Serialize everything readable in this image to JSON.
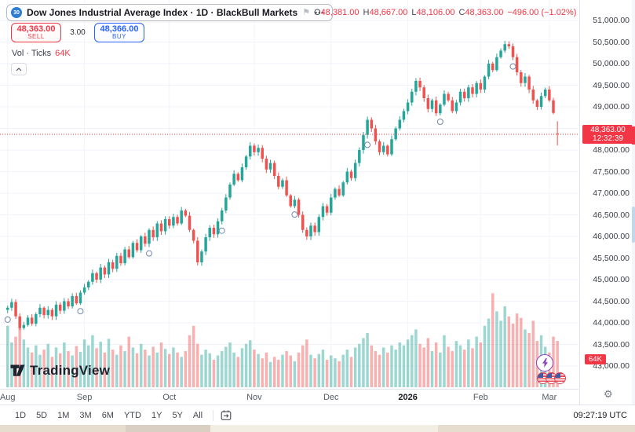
{
  "header": {
    "badge": "30",
    "title": "Dow Jones Industrial Average Index · 1D · BlackBull Markets",
    "more_label": "•••",
    "ohlc": {
      "o_label": "O",
      "o": "48,381.00",
      "h_label": "H",
      "h": "48,667.00",
      "l_label": "L",
      "l": "48,106.00",
      "c_label": "C",
      "c": "48,363.00",
      "change": "−496.00 (−1.02%)"
    }
  },
  "trade_panel": {
    "sell_price": "48,363.00",
    "sell_label": "SELL",
    "spread": "3.00",
    "buy_price": "48,366.00",
    "buy_label": "BUY",
    "vol_label": "Vol · Ticks",
    "vol_value": "64K"
  },
  "price_axis": {
    "labels": [
      "51,000.00",
      "50,500.00",
      "50,000.00",
      "49,500.00",
      "49,000.00",
      "48,500.00",
      "48,000.00",
      "47,500.00",
      "47,000.00",
      "46,500.00",
      "46,000.00",
      "45,500.00",
      "45,000.00",
      "44,500.00",
      "44,000.00",
      "43,500.00",
      "43,000.00"
    ],
    "current_price": "48,363.00",
    "countdown": "12:32:39",
    "volume_tag": "64K"
  },
  "time_axis": {
    "labels": [
      {
        "text": "Aug",
        "bar": 0
      },
      {
        "text": "Sep",
        "bar": 19
      },
      {
        "text": "Oct",
        "bar": 40
      },
      {
        "text": "Nov",
        "bar": 61
      },
      {
        "text": "Dec",
        "bar": 80
      },
      {
        "text": "2026",
        "bar": 99,
        "bold": true
      },
      {
        "text": "Feb",
        "bar": 117
      },
      {
        "text": "Mar",
        "bar": 134
      }
    ]
  },
  "toolbar": {
    "ranges": [
      "1D",
      "5D",
      "1M",
      "3M",
      "6M",
      "YTD",
      "1Y",
      "5Y",
      "All"
    ],
    "clock": "09:27:19 UTC"
  },
  "logo": {
    "text": "TradingView"
  },
  "chart_data": {
    "type": "candlestick",
    "title": "Dow Jones Industrial Average Index",
    "interval": "1D",
    "provider": "BlackBull Markets",
    "y_min": 43000,
    "y_max": 51000,
    "y_step": 500,
    "x_months": [
      "Aug",
      "Sep",
      "Oct",
      "Nov",
      "Dec",
      "2026",
      "Feb",
      "Mar"
    ],
    "current_price": 48363,
    "last_bar": {
      "open": 48381,
      "high": 48667,
      "low": 48106,
      "close": 48363
    },
    "first_open": 44300,
    "closes": [
      44350,
      44480,
      44150,
      43880,
      43950,
      44120,
      43980,
      44200,
      44350,
      44180,
      44300,
      44150,
      44420,
      44280,
      44500,
      44380,
      44620,
      44450,
      44700,
      44820,
      44950,
      45150,
      45000,
      45280,
      45120,
      45400,
      45250,
      45550,
      45380,
      45700,
      45520,
      45850,
      45680,
      46000,
      45830,
      46150,
      45980,
      46300,
      46120,
      46400,
      46250,
      46450,
      46300,
      46600,
      46480,
      46150,
      45900,
      45400,
      45650,
      45980,
      46200,
      46050,
      46350,
      46600,
      46900,
      47200,
      47450,
      47300,
      47600,
      47850,
      48100,
      47950,
      48050,
      47800,
      47550,
      47700,
      47400,
      47150,
      47300,
      46950,
      46700,
      46850,
      46500,
      46150,
      46000,
      46250,
      46100,
      46450,
      46700,
      46550,
      46900,
      47100,
      46950,
      47250,
      47500,
      47350,
      47700,
      48000,
      48350,
      48700,
      48500,
      48200,
      47950,
      48100,
      47900,
      48250,
      48500,
      48700,
      48900,
      49100,
      49350,
      49600,
      49450,
      49200,
      48950,
      49150,
      48850,
      49050,
      49300,
      49150,
      48900,
      49100,
      49350,
      49200,
      49450,
      49300,
      49550,
      49400,
      49700,
      50000,
      49850,
      50150,
      50300,
      50450,
      50400,
      50150,
      49800,
      49550,
      49700,
      49400,
      49150,
      49000,
      49250,
      49400,
      49150,
      48860,
      48363
    ],
    "volumes_k": [
      85,
      62,
      70,
      95,
      66,
      55,
      48,
      58,
      45,
      52,
      60,
      42,
      55,
      47,
      62,
      50,
      44,
      57,
      49,
      66,
      58,
      72,
      54,
      63,
      48,
      67,
      52,
      45,
      58,
      50,
      70,
      55,
      47,
      60,
      52,
      44,
      56,
      48,
      62,
      53,
      46,
      55,
      48,
      42,
      50,
      72,
      85,
      60,
      45,
      52,
      47,
      38,
      44,
      50,
      56,
      62,
      48,
      42,
      54,
      60,
      65,
      52,
      46,
      40,
      48,
      35,
      42,
      38,
      45,
      50,
      44,
      36,
      48,
      58,
      66,
      45,
      40,
      46,
      52,
      38,
      44,
      40,
      36,
      45,
      52,
      42,
      55,
      60,
      68,
      75,
      58,
      50,
      45,
      55,
      48,
      58,
      52,
      62,
      58,
      66,
      72,
      80,
      60,
      55,
      68,
      50,
      62,
      48,
      72,
      56,
      50,
      64,
      58,
      52,
      66,
      54,
      70,
      62,
      85,
      95,
      130,
      105,
      92,
      112,
      98,
      88,
      102,
      96,
      80,
      75,
      92,
      64,
      72,
      56,
      48,
      70,
      64
    ],
    "event_marker_bars": [
      0,
      18,
      35,
      53,
      71,
      89,
      107,
      125
    ],
    "colors": {
      "up": "#26a69a",
      "down": "#ef5350",
      "volume_up": "rgba(38,166,154,0.45)",
      "volume_down": "rgba(239,83,80,0.45)",
      "grid": "#f0f3fa",
      "current": "#f23645"
    }
  }
}
